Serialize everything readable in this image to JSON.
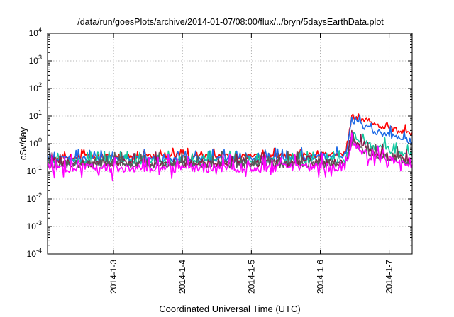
{
  "chart_data": {
    "type": "line",
    "title": "/data/run/goesPlots/archive/2014-01-07/08:00/flux/../bryn/5daysEarthData.plot",
    "xlabel": "Coordinated Universal Time (UTC)",
    "ylabel": "cSv/day",
    "y_scale": "log",
    "ylim": [
      0.0001,
      10000
    ],
    "xlim": [
      "2014-01-02 01:00",
      "2014-01-07 08:00"
    ],
    "grid": true,
    "x_ticks": [
      {
        "date": "2014-01-03",
        "label": "2014-1-3"
      },
      {
        "date": "2014-01-04",
        "label": "2014-1-4"
      },
      {
        "date": "2014-01-05",
        "label": "2014-1-5"
      },
      {
        "date": "2014-01-06",
        "label": "2014-1-6"
      },
      {
        "date": "2014-01-07",
        "label": "2014-1-7"
      }
    ],
    "y_ticks": [
      {
        "value": 0.0001,
        "base": "10",
        "exp": "-4"
      },
      {
        "value": 0.001,
        "base": "10",
        "exp": "-3"
      },
      {
        "value": 0.01,
        "base": "10",
        "exp": "-2"
      },
      {
        "value": 0.1,
        "base": "10",
        "exp": "-1"
      },
      {
        "value": 1,
        "base": "10",
        "exp": "0"
      },
      {
        "value": 10,
        "base": "10",
        "exp": "1"
      },
      {
        "value": 100,
        "base": "10",
        "exp": "2"
      },
      {
        "value": 1000,
        "base": "10",
        "exp": "3"
      },
      {
        "value": 10000,
        "base": "10",
        "exp": "4"
      }
    ],
    "series": [
      {
        "color": "#ff0000",
        "x": [
          "2014-01-02 01:00",
          "2014-01-05 00:00",
          "2014-01-06 09:00",
          "2014-01-06 11:00",
          "2014-01-06 18:00",
          "2014-01-07 08:00"
        ],
        "y": [
          0.33,
          0.34,
          0.42,
          10.5,
          5.0,
          2.2
        ]
      },
      {
        "color": "#1e6be6",
        "x": [
          "2014-01-02 01:00",
          "2014-01-05 00:00",
          "2014-01-06 09:00",
          "2014-01-06 11:00",
          "2014-01-06 18:00",
          "2014-01-07 08:00"
        ],
        "y": [
          0.28,
          0.29,
          0.36,
          7.5,
          3.0,
          1.2
        ]
      },
      {
        "color": "#14c8a0",
        "x": [
          "2014-01-02 01:00",
          "2014-01-05 00:00",
          "2014-01-06 09:00",
          "2014-01-06 11:00",
          "2014-01-06 18:00",
          "2014-01-07 08:00"
        ],
        "y": [
          0.22,
          0.22,
          0.25,
          2.2,
          0.8,
          0.42
        ]
      },
      {
        "color": "#8b1a4a",
        "x": [
          "2014-01-02 01:00",
          "2014-01-05 00:00",
          "2014-01-06 09:00",
          "2014-01-06 11:00",
          "2014-01-06 18:00",
          "2014-01-07 08:00"
        ],
        "y": [
          0.19,
          0.19,
          0.2,
          1.3,
          0.45,
          0.24
        ]
      },
      {
        "color": "#5a5a5a",
        "x": [
          "2014-01-02 01:00",
          "2014-01-05 00:00",
          "2014-01-06 09:00",
          "2014-01-06 11:00",
          "2014-01-06 18:00",
          "2014-01-07 08:00"
        ],
        "y": [
          0.18,
          0.18,
          0.19,
          1.15,
          0.42,
          0.22
        ]
      },
      {
        "color": "#ff00ff",
        "x": [
          "2014-01-02 01:00",
          "2014-01-05 00:00",
          "2014-01-06 09:00",
          "2014-01-06 11:00",
          "2014-01-06 18:00",
          "2014-01-07 08:00"
        ],
        "y": [
          0.13,
          0.13,
          0.14,
          0.95,
          0.33,
          0.17
        ]
      }
    ]
  }
}
